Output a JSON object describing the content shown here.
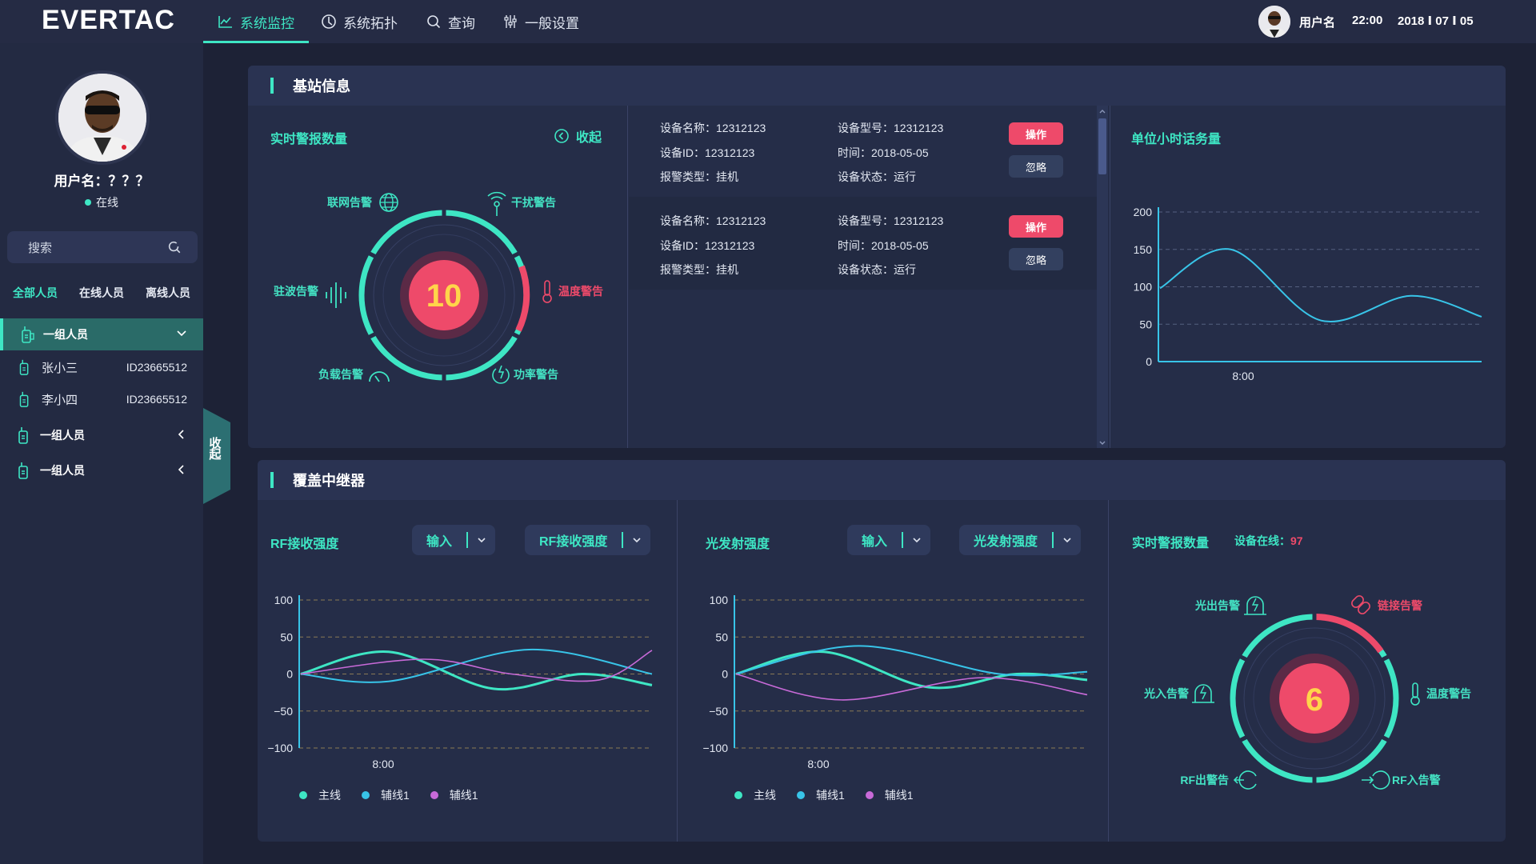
{
  "header": {
    "logo": "EVERTAC",
    "nav": [
      {
        "label": "系统监控",
        "active": true
      },
      {
        "label": "系统拓扑"
      },
      {
        "label": "查询"
      },
      {
        "label": "一般设置"
      }
    ],
    "user": "用户名",
    "time": "22:00",
    "date": "2018 Ⅰ 07 Ⅰ 05"
  },
  "sidebar": {
    "username": "用户名：？？？",
    "status": "在线",
    "search_placeholder": "搜索",
    "tabs": [
      "全部人员",
      "在线人员",
      "离线人员"
    ],
    "groups": [
      {
        "name": "一组人员",
        "expanded": true,
        "members": [
          {
            "name": "张小三",
            "id": "ID23665512"
          },
          {
            "name": "李小四",
            "id": "ID23665512"
          }
        ]
      },
      {
        "name": "一组人员",
        "expanded": false
      },
      {
        "name": "一组人员",
        "expanded": false
      }
    ],
    "collapse_label": "收起"
  },
  "base_station": {
    "title": "基站信息",
    "alarm": {
      "title": "实时警报数量",
      "collapse": "收起",
      "count": "10",
      "labels": {
        "network": "联网告警",
        "interference": "干扰警告",
        "temperature": "温度警告",
        "power": "功率警告",
        "load": "负载告警",
        "standing_wave": "驻波告警"
      }
    },
    "devices": [
      {
        "name_label": "设备名称：",
        "name": "12312123",
        "model_label": "设备型号：",
        "model": "12312123",
        "id_label": "设备ID：",
        "id": "12312123",
        "time_label": "时间：",
        "time": "2018-05-05",
        "type_label": "报警类型：",
        "type": "挂机",
        "state_label": "设备状态：",
        "state": "运行",
        "op": "操作",
        "ignore": "忽略"
      },
      {
        "name_label": "设备名称：",
        "name": "12312123",
        "model_label": "设备型号：",
        "model": "12312123",
        "id_label": "设备ID：",
        "id": "12312123",
        "time_label": "时间：",
        "time": "2018-05-05",
        "type_label": "报警类型：",
        "type": "挂机",
        "state_label": "设备状态：",
        "state": "运行",
        "op": "操作",
        "ignore": "忽略"
      }
    ],
    "traffic": {
      "title": "单位小时话务量"
    }
  },
  "repeater": {
    "title": "覆盖中继器",
    "rf": {
      "title": "RF接收强度",
      "dd1": "输入",
      "dd2": "RF接收强度"
    },
    "optical": {
      "title": "光发射强度",
      "dd1": "输入",
      "dd2": "光发射强度"
    },
    "alarm": {
      "title": "实时警报数量",
      "online_label": "设备在线：",
      "online_count": "97",
      "count": "6",
      "labels": {
        "light_out": "光出告警",
        "link": "链接告警",
        "light_in": "光入告警",
        "temperature": "温度警告",
        "rf_out": "RF出警告",
        "rf_in": "RF入告警"
      }
    },
    "legend": [
      "主线",
      "辅线1",
      "辅线1"
    ]
  },
  "colors": {
    "accent": "#3ee6c4",
    "alert": "#ee4a6a",
    "purple": "#c86ad8",
    "cyan": "#38c4e8"
  },
  "chart_data": [
    {
      "type": "line",
      "title": "单位小时话务量",
      "x_ticks": [
        "8:00"
      ],
      "ylim": [
        0,
        200
      ],
      "y_ticks": [
        0,
        50,
        100,
        150,
        200
      ],
      "grid": true,
      "series": [
        {
          "values": [
            [
              0,
              98
            ],
            [
              0.22,
              150
            ],
            [
              0.5,
              55
            ],
            [
              0.78,
              88
            ],
            [
              1,
              60
            ]
          ]
        }
      ]
    },
    {
      "type": "line",
      "title": "RF接收强度",
      "x_ticks": [
        "8:00"
      ],
      "ylim": [
        -100,
        100
      ],
      "y_ticks": [
        100,
        50,
        0,
        -50,
        -100
      ],
      "legend": "bottom",
      "series": [
        {
          "name": "主线",
          "values": [
            [
              0,
              0
            ],
            [
              0.25,
              30
            ],
            [
              0.55,
              -20
            ],
            [
              0.8,
              0
            ],
            [
              1,
              -15
            ]
          ]
        },
        {
          "name": "辅线1",
          "values": [
            [
              0,
              0
            ],
            [
              0.25,
              -10
            ],
            [
              0.65,
              33
            ],
            [
              1,
              0
            ]
          ]
        },
        {
          "name": "辅线1",
          "values": [
            [
              0,
              0
            ],
            [
              0.35,
              20
            ],
            [
              0.6,
              0
            ],
            [
              0.85,
              -8
            ],
            [
              1,
              32
            ]
          ]
        }
      ]
    },
    {
      "type": "line",
      "title": "光发射强度",
      "x_ticks": [
        "8:00"
      ],
      "ylim": [
        -100,
        100
      ],
      "y_ticks": [
        100,
        50,
        0,
        -50,
        -100
      ],
      "legend": "bottom",
      "series": [
        {
          "name": "主线",
          "values": [
            [
              0,
              0
            ],
            [
              0.25,
              30
            ],
            [
              0.55,
              -18
            ],
            [
              0.8,
              0
            ],
            [
              1,
              -8
            ]
          ]
        },
        {
          "name": "辅线1",
          "values": [
            [
              0,
              0
            ],
            [
              0.35,
              38
            ],
            [
              0.75,
              0
            ],
            [
              1,
              3
            ]
          ]
        },
        {
          "name": "辅线1",
          "values": [
            [
              0,
              0
            ],
            [
              0.3,
              -35
            ],
            [
              0.7,
              -5
            ],
            [
              1,
              -28
            ]
          ]
        }
      ]
    }
  ]
}
